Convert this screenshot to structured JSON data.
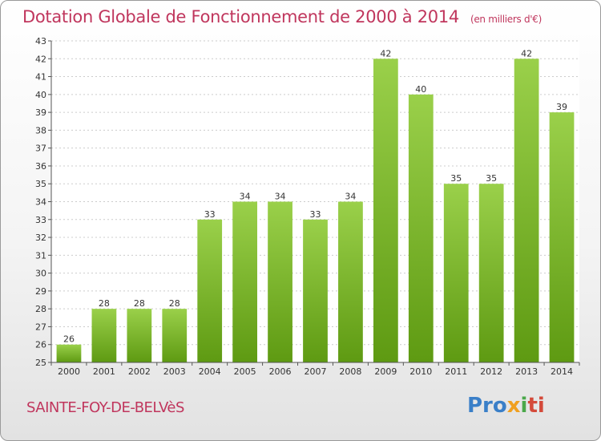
{
  "header": {
    "title": "Dotation Globale de Fonctionnement de 2000 à 2014",
    "subtitle": "(en milliers d'€)"
  },
  "footer": {
    "town": "SAINTE-FOY-DE-BELVèS",
    "logo": [
      "Pro",
      "x",
      "i",
      "ti"
    ]
  },
  "colors": {
    "accent": "#c0365d",
    "bar_top": "#9ad04a",
    "bar_bottom": "#5e9a12"
  },
  "chart_data": {
    "type": "bar",
    "title": "Dotation Globale de Fonctionnement de 2000 à 2014",
    "subtitle": "(en milliers d'€)",
    "categories": [
      "2000",
      "2001",
      "2002",
      "2003",
      "2004",
      "2005",
      "2006",
      "2007",
      "2008",
      "2009",
      "2010",
      "2011",
      "2012",
      "2013",
      "2014"
    ],
    "values": [
      26,
      28,
      28,
      28,
      33,
      34,
      34,
      33,
      34,
      42,
      40,
      35,
      35,
      42,
      39
    ],
    "ylim": [
      25,
      43
    ],
    "yticks": [
      25,
      26,
      27,
      28,
      29,
      30,
      31,
      32,
      33,
      34,
      35,
      36,
      37,
      38,
      39,
      40,
      41,
      42,
      43
    ],
    "grid": true,
    "xlabel": "",
    "ylabel": ""
  }
}
